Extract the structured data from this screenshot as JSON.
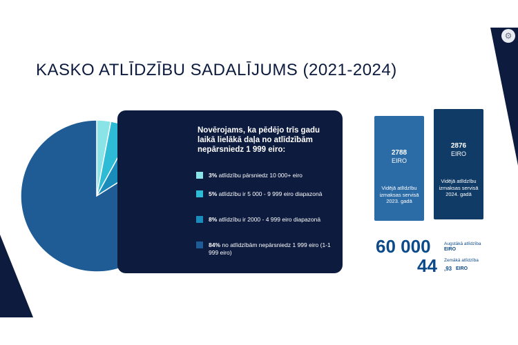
{
  "title": "KASKO ATLĪDZĪBU SADALĪJUMS (2021-2024)",
  "colors": {
    "navy": "#0d1b3e",
    "slice_3": "#8ae3e6",
    "slice_5": "#2ebbd6",
    "slice_8": "#1a8cbc",
    "slice_84": "#1f5c95",
    "card_2023": "#2b6ba6",
    "card_2024": "#103b66",
    "accent_text": "#0d4a8a"
  },
  "panel": {
    "intro": "Novērojams, ka pēdējo trīs gadu laikā lielākā daļa no atlīdzībām nepārsniedz 1 999 eiro:",
    "items": [
      {
        "percent": "3%",
        "text": "atlīdzību pārsniedz 10 000+ eiro",
        "color": "#8ae3e6"
      },
      {
        "percent": "5%",
        "text": "atlīdzību ir 5 000 - 9 999 eiro diapazonā",
        "color": "#2ebbd6"
      },
      {
        "percent": "8%",
        "text": "atlīdzību ir 2000 - 4 999 eiro diapazonā",
        "color": "#1a8cbc"
      },
      {
        "percent": "84%",
        "text": "no atlīdzībām nepārsniedz 1 999 eiro (1-1 999 eiro)",
        "color": "#1f5c95"
      }
    ]
  },
  "cards": [
    {
      "amount": "2788",
      "unit": "EIRO",
      "desc": "Vidējā atlīdzību izmaksas servisā 2023. gadā",
      "color": "#2b6ba6"
    },
    {
      "amount": "2876",
      "unit": "EIRO",
      "desc": "Vidējā atlīdzību izmaksas servisā 2024. gadā",
      "color": "#103b66"
    }
  ],
  "highest": {
    "value": "60 000",
    "label": "Augstākā atlīdzība",
    "unit": "EIRO"
  },
  "lowest": {
    "value": "44",
    "decimals": ",93",
    "label": "Zemākā atlīdzība",
    "unit": "EIRO"
  },
  "chart_data": {
    "type": "pie",
    "categories": [
      "10 000+ eiro",
      "5 000 - 9 999 eiro",
      "2000 - 4 999 eiro",
      "1-1 999 eiro"
    ],
    "values": [
      3,
      5,
      8,
      84
    ],
    "colors": [
      "#8ae3e6",
      "#2ebbd6",
      "#1a8cbc",
      "#1f5c95"
    ]
  }
}
